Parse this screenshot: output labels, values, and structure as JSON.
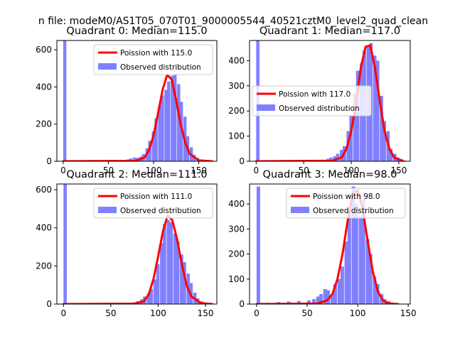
{
  "suptitle": "n file: modeM0/AS1T05_070T01_9000005544_40521cztM0_level2_quad_clean",
  "colors": {
    "fit": "#ff0000",
    "observed": "#8080ff"
  },
  "chart_data": [
    {
      "type": "bar",
      "title": "Quadrant 0: Median=115.0",
      "xlim": [
        -7,
        170
      ],
      "ylim": [
        0,
        650
      ],
      "xticks": [
        0,
        50,
        100,
        150
      ],
      "yticks": [
        0,
        200,
        400,
        600
      ],
      "legend_placement": "upper right",
      "series": [
        {
          "name": "Poission with 115.0",
          "type": "line",
          "mean": 115.0,
          "peak": 470,
          "x": [
            0,
            80,
            90,
            95,
            100,
            105,
            110,
            115,
            120,
            125,
            130,
            135,
            140,
            150,
            165
          ],
          "values": [
            0,
            2,
            20,
            60,
            140,
            260,
            385,
            465,
            440,
            330,
            200,
            100,
            40,
            5,
            0
          ]
        },
        {
          "name": "Observed distribution",
          "type": "hist",
          "bin_width": 3.5,
          "x": [
            0,
            20,
            40,
            60,
            66,
            70,
            73,
            77,
            80,
            84,
            87,
            91,
            94,
            98,
            101,
            105,
            108,
            112,
            115,
            119,
            122,
            126,
            129,
            133,
            136,
            140,
            143,
            147,
            150,
            154,
            157
          ],
          "values": [
            650,
            2,
            2,
            3,
            5,
            10,
            15,
            20,
            18,
            25,
            38,
            70,
            110,
            160,
            230,
            300,
            355,
            385,
            430,
            460,
            465,
            415,
            320,
            240,
            135,
            75,
            35,
            18,
            8,
            3,
            1
          ]
        }
      ]
    },
    {
      "type": "bar",
      "title": "Quadrant 1: Median=117.0",
      "xlim": [
        -7,
        162
      ],
      "ylim": [
        0,
        480
      ],
      "xticks": [
        0,
        50,
        100,
        150
      ],
      "yticks": [
        0,
        100,
        200,
        300,
        400
      ],
      "legend_placement": "center left",
      "series": [
        {
          "name": "Poission with 117.0",
          "type": "line",
          "mean": 117.0,
          "peak": 470,
          "x": [
            0,
            80,
            90,
            95,
            100,
            105,
            110,
            115,
            120,
            125,
            130,
            135,
            140,
            145,
            155
          ],
          "values": [
            0,
            2,
            15,
            50,
            120,
            230,
            370,
            455,
            460,
            370,
            240,
            120,
            50,
            15,
            0
          ]
        },
        {
          "name": "Observed distribution",
          "type": "hist",
          "bin_width": 3.5,
          "x": [
            0,
            20,
            40,
            60,
            70,
            74,
            77,
            81,
            84,
            88,
            91,
            95,
            98,
            102,
            105,
            109,
            112,
            116,
            119,
            123,
            126,
            130,
            133,
            137,
            140,
            144,
            147,
            151,
            154
          ],
          "values": [
            480,
            1,
            2,
            3,
            6,
            10,
            15,
            20,
            30,
            45,
            60,
            120,
            180,
            270,
            360,
            390,
            440,
            460,
            470,
            420,
            400,
            260,
            160,
            120,
            50,
            30,
            15,
            8,
            3
          ]
        }
      ]
    },
    {
      "type": "bar",
      "title": "Quadrant 2: Median=111.0",
      "xlim": [
        -7,
        162
      ],
      "ylim": [
        0,
        630
      ],
      "xticks": [
        0,
        50,
        100,
        150
      ],
      "yticks": [
        0,
        200,
        400,
        600
      ],
      "legend_placement": "upper right",
      "series": [
        {
          "name": "Poission with 111.0",
          "type": "line",
          "mean": 111.0,
          "peak": 470,
          "x": [
            0,
            75,
            85,
            90,
            95,
            100,
            105,
            110,
            115,
            120,
            125,
            130,
            135,
            145,
            157
          ],
          "values": [
            0,
            2,
            15,
            50,
            130,
            250,
            380,
            465,
            440,
            340,
            210,
            100,
            40,
            5,
            0
          ]
        },
        {
          "name": "Observed distribution",
          "type": "hist",
          "bin_width": 3.5,
          "x": [
            0,
            20,
            40,
            60,
            70,
            74,
            77,
            81,
            84,
            88,
            91,
            95,
            98,
            102,
            105,
            109,
            112,
            116,
            119,
            123,
            126,
            130,
            133,
            137,
            140,
            144,
            147,
            151
          ],
          "values": [
            630,
            1,
            2,
            3,
            6,
            10,
            15,
            25,
            40,
            55,
            80,
            130,
            210,
            320,
            420,
            440,
            430,
            370,
            330,
            260,
            220,
            160,
            110,
            60,
            30,
            15,
            8,
            3
          ]
        }
      ]
    },
    {
      "type": "bar",
      "title": "Quadrant 3: Median=98.0",
      "xlim": [
        -7,
        152
      ],
      "ylim": [
        0,
        480
      ],
      "xticks": [
        0,
        50,
        100,
        150
      ],
      "yticks": [
        0,
        100,
        200,
        300,
        400
      ],
      "legend_placement": "upper right",
      "series": [
        {
          "name": "Poission with 98.0",
          "type": "line",
          "mean": 98.0,
          "peak": 470,
          "x": [
            0,
            60,
            70,
            75,
            80,
            85,
            90,
            95,
            100,
            105,
            110,
            115,
            120,
            125,
            130,
            140
          ],
          "values": [
            0,
            2,
            15,
            40,
            100,
            200,
            330,
            440,
            455,
            380,
            250,
            130,
            50,
            15,
            3,
            0
          ]
        },
        {
          "name": "Observed distribution",
          "type": "hist",
          "bin_width": 3.5,
          "x": [
            0,
            10,
            20,
            30,
            40,
            50,
            55,
            59,
            62,
            66,
            69,
            73,
            76,
            80,
            83,
            87,
            90,
            94,
            97,
            101,
            104,
            108,
            111,
            115,
            118,
            122,
            125,
            129,
            132,
            136,
            139
          ],
          "values": [
            470,
            5,
            8,
            10,
            12,
            15,
            20,
            30,
            40,
            60,
            55,
            40,
            80,
            100,
            150,
            250,
            380,
            470,
            400,
            350,
            420,
            260,
            200,
            110,
            80,
            40,
            20,
            12,
            6,
            3,
            2
          ]
        }
      ]
    }
  ]
}
